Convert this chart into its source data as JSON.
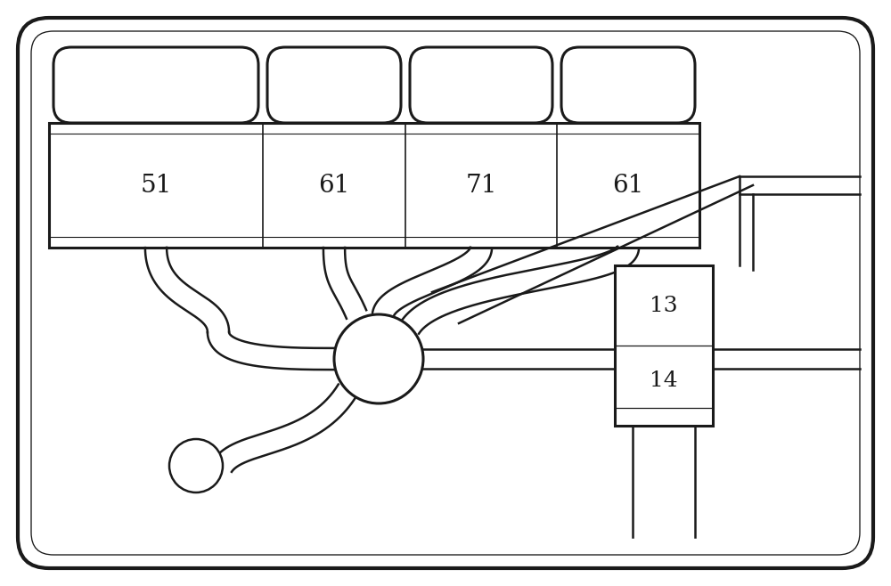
{
  "bg_color": "#ffffff",
  "line_color": "#1a1a1a",
  "lw_outer": 3.0,
  "lw_thick": 2.2,
  "lw_med": 1.8,
  "lw_thin": 1.2,
  "fig_w": 10.0,
  "fig_h": 6.58,
  "labels_cavern": [
    "51",
    "61",
    "71",
    "61"
  ],
  "labels_right": [
    "13",
    "14"
  ],
  "font_size_cavern": 20,
  "font_size_right": 18
}
